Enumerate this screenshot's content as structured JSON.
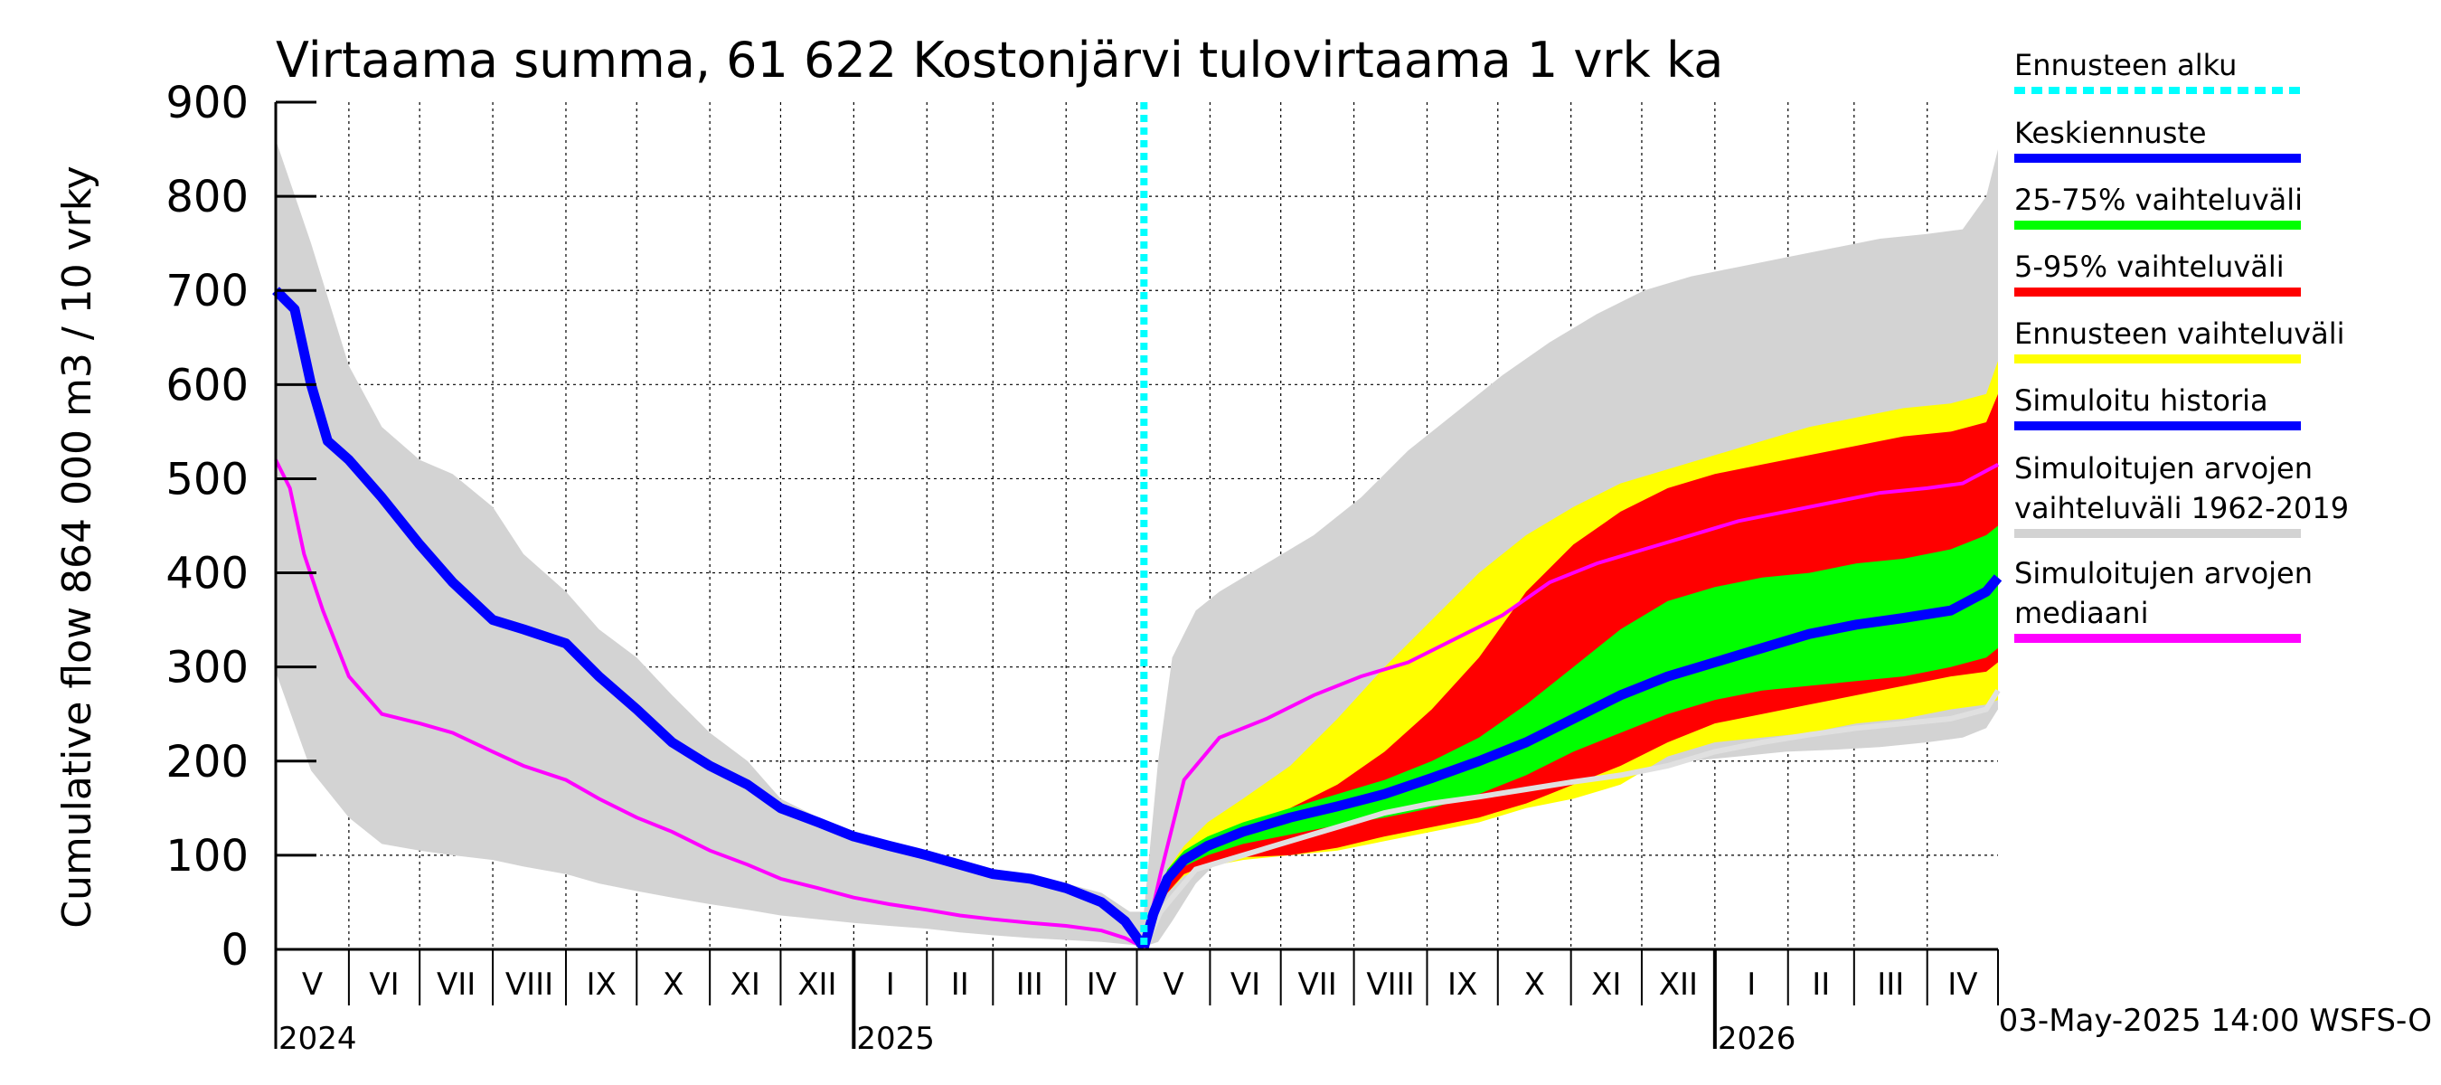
{
  "chart_data": {
    "type": "area",
    "title": "Virtaama summa, 61 622 Kostonjärvi tulovirtaama 1 vrk ka",
    "ylabel": "Cumulative flow    864 000 m3 / 10 vrky",
    "ylim": [
      0,
      900
    ],
    "yticks": [
      "0",
      "100",
      "200",
      "300",
      "400",
      "500",
      "600",
      "700",
      "800",
      "900"
    ],
    "x_range_days": [
      0,
      730
    ],
    "forecast_start_day": 368,
    "months": [
      {
        "label": "V",
        "start": 0,
        "end": 31
      },
      {
        "label": "VI",
        "start": 31,
        "end": 61
      },
      {
        "label": "VII",
        "start": 61,
        "end": 92
      },
      {
        "label": "VIII",
        "start": 92,
        "end": 123
      },
      {
        "label": "IX",
        "start": 123,
        "end": 153
      },
      {
        "label": "X",
        "start": 153,
        "end": 184
      },
      {
        "label": "XI",
        "start": 184,
        "end": 214
      },
      {
        "label": "XII",
        "start": 214,
        "end": 245
      },
      {
        "label": "I",
        "start": 245,
        "end": 276
      },
      {
        "label": "II",
        "start": 276,
        "end": 304
      },
      {
        "label": "III",
        "start": 304,
        "end": 335
      },
      {
        "label": "IV",
        "start": 335,
        "end": 365
      },
      {
        "label": "V",
        "start": 365,
        "end": 396
      },
      {
        "label": "VI",
        "start": 396,
        "end": 426
      },
      {
        "label": "VII",
        "start": 426,
        "end": 457
      },
      {
        "label": "VIII",
        "start": 457,
        "end": 488
      },
      {
        "label": "IX",
        "start": 488,
        "end": 518
      },
      {
        "label": "X",
        "start": 518,
        "end": 549
      },
      {
        "label": "XI",
        "start": 549,
        "end": 579
      },
      {
        "label": "XII",
        "start": 579,
        "end": 610
      },
      {
        "label": "I",
        "start": 610,
        "end": 641
      },
      {
        "label": "II",
        "start": 641,
        "end": 669
      },
      {
        "label": "III",
        "start": 669,
        "end": 700
      },
      {
        "label": "IV",
        "start": 700,
        "end": 730
      }
    ],
    "years": [
      {
        "label": "2024",
        "day": 0
      },
      {
        "label": "2025",
        "day": 245
      },
      {
        "label": "2026",
        "day": 610
      }
    ],
    "year_boundaries": [
      245,
      610
    ],
    "series": {
      "hist_range_1962_2019": {
        "x": [
          0,
          15,
          31,
          45,
          61,
          75,
          92,
          105,
          123,
          137,
          153,
          168,
          184,
          200,
          214,
          230,
          245,
          260,
          276,
          290,
          304,
          320,
          335,
          350,
          362,
          368,
          374,
          380,
          390,
          400,
          420,
          440,
          460,
          480,
          500,
          520,
          540,
          560,
          580,
          600,
          620,
          640,
          660,
          680,
          700,
          715,
          725,
          730
        ],
        "upper": [
          860,
          750,
          620,
          555,
          520,
          505,
          470,
          420,
          380,
          340,
          310,
          270,
          230,
          200,
          160,
          140,
          125,
          110,
          100,
          90,
          80,
          75,
          70,
          60,
          40,
          40,
          200,
          310,
          360,
          380,
          410,
          440,
          480,
          530,
          570,
          610,
          645,
          675,
          700,
          715,
          725,
          735,
          745,
          755,
          760,
          765,
          800,
          850
        ],
        "lower": [
          295,
          190,
          140,
          112,
          105,
          100,
          95,
          88,
          80,
          70,
          62,
          55,
          48,
          42,
          36,
          32,
          28,
          25,
          22,
          18,
          15,
          12,
          10,
          8,
          5,
          3,
          8,
          30,
          70,
          95,
          105,
          112,
          118,
          125,
          138,
          150,
          162,
          175,
          188,
          200,
          205,
          210,
          212,
          215,
          220,
          225,
          235,
          255
        ]
      },
      "ennuste_5_95_outer": {
        "x": [
          368,
          372,
          378,
          385,
          395,
          410,
          430,
          450,
          470,
          490,
          510,
          530,
          550,
          570,
          590,
          610,
          630,
          650,
          670,
          690,
          710,
          725,
          730
        ],
        "upper": [
          2,
          40,
          85,
          110,
          135,
          160,
          195,
          245,
          300,
          350,
          400,
          440,
          470,
          495,
          510,
          525,
          540,
          555,
          565,
          575,
          580,
          590,
          625
        ],
        "lower": [
          2,
          30,
          60,
          78,
          88,
          95,
          100,
          105,
          115,
          125,
          135,
          150,
          160,
          175,
          205,
          220,
          225,
          230,
          240,
          245,
          255,
          260,
          265
        ]
      },
      "ennuste_5_95": {
        "x": [
          368,
          372,
          378,
          385,
          395,
          410,
          430,
          450,
          470,
          490,
          510,
          530,
          550,
          570,
          590,
          610,
          630,
          650,
          670,
          690,
          710,
          725,
          730
        ],
        "upper": [
          2,
          40,
          80,
          100,
          115,
          130,
          150,
          175,
          210,
          255,
          310,
          380,
          430,
          465,
          490,
          505,
          515,
          525,
          535,
          545,
          550,
          560,
          590
        ],
        "lower": [
          2,
          30,
          60,
          80,
          90,
          98,
          100,
          108,
          120,
          130,
          140,
          155,
          175,
          195,
          220,
          240,
          250,
          260,
          270,
          280,
          290,
          295,
          305
        ]
      },
      "ennuste_25_75": {
        "x": [
          368,
          372,
          378,
          385,
          395,
          410,
          430,
          450,
          470,
          490,
          510,
          530,
          550,
          570,
          590,
          610,
          630,
          650,
          670,
          690,
          710,
          725,
          730
        ],
        "upper": [
          2,
          45,
          85,
          105,
          120,
          135,
          150,
          165,
          180,
          200,
          225,
          260,
          300,
          340,
          370,
          385,
          395,
          400,
          410,
          415,
          425,
          440,
          450
        ],
        "lower": [
          2,
          35,
          70,
          88,
          100,
          112,
          122,
          132,
          140,
          150,
          165,
          185,
          210,
          230,
          250,
          265,
          275,
          280,
          285,
          290,
          300,
          310,
          320
        ]
      },
      "keskiennuste": {
        "x": [
          368,
          372,
          378,
          385,
          395,
          410,
          430,
          450,
          470,
          490,
          510,
          530,
          550,
          570,
          590,
          610,
          630,
          650,
          670,
          690,
          710,
          725,
          730
        ],
        "y": [
          2,
          38,
          75,
          95,
          110,
          125,
          140,
          152,
          165,
          182,
          200,
          220,
          245,
          270,
          290,
          305,
          320,
          335,
          345,
          352,
          360,
          380,
          395
        ]
      },
      "simuloitu_historia": {
        "x": [
          0,
          8,
          15,
          22,
          31,
          45,
          61,
          75,
          92,
          105,
          123,
          137,
          153,
          168,
          184,
          200,
          214,
          230,
          245,
          260,
          276,
          290,
          304,
          320,
          335,
          350,
          360,
          368
        ],
        "y": [
          700,
          680,
          600,
          540,
          520,
          480,
          430,
          390,
          350,
          340,
          325,
          290,
          255,
          220,
          195,
          175,
          150,
          135,
          120,
          110,
          100,
          90,
          80,
          75,
          65,
          50,
          30,
          2
        ]
      },
      "median": {
        "x": [
          0,
          6,
          12,
          20,
          31,
          45,
          61,
          75,
          92,
          105,
          123,
          137,
          153,
          168,
          184,
          200,
          214,
          230,
          245,
          260,
          276,
          290,
          304,
          320,
          335,
          350,
          360,
          368,
          375,
          385,
          400,
          420,
          440,
          460,
          480,
          500,
          520,
          540,
          560,
          580,
          600,
          620,
          640,
          660,
          680,
          700,
          715,
          730
        ],
        "y": [
          520,
          490,
          420,
          360,
          290,
          250,
          240,
          230,
          210,
          195,
          180,
          160,
          140,
          125,
          105,
          90,
          75,
          65,
          55,
          48,
          42,
          36,
          32,
          28,
          25,
          20,
          12,
          2,
          80,
          180,
          225,
          245,
          270,
          290,
          305,
          330,
          355,
          390,
          410,
          425,
          440,
          455,
          465,
          475,
          485,
          490,
          495,
          515
        ]
      },
      "median_forecast": {
        "x": [
          368,
          375,
          390,
          410,
          430,
          450,
          470,
          490,
          510,
          530,
          550,
          570,
          590,
          610,
          630,
          650,
          670,
          690,
          710,
          725,
          730
        ],
        "y": [
          2,
          40,
          85,
          100,
          115,
          130,
          145,
          155,
          162,
          170,
          178,
          185,
          195,
          210,
          220,
          228,
          235,
          240,
          245,
          255,
          275
        ]
      }
    },
    "legend": [
      {
        "label": "Ennusteen alku",
        "color": "#00ffff",
        "style": "dotted"
      },
      {
        "label": "Keskiennuste",
        "color": "#0000ff",
        "style": "line"
      },
      {
        "label": "25-75% vaihteluväli",
        "color": "#00ff00",
        "style": "line"
      },
      {
        "label": "5-95% vaihteluväli",
        "color": "#ff0000",
        "style": "line"
      },
      {
        "label": "Ennusteen vaihteluväli",
        "color": "#ffff00",
        "style": "line"
      },
      {
        "label": "Simuloitu historia",
        "color": "#0000ff",
        "style": "line"
      },
      {
        "label": "Simuloitujen arvojen vaihteluväli 1962-2019",
        "color": "#d3d3d3",
        "style": "line"
      },
      {
        "label": "Simuloitujen arvojen mediaani",
        "color": "#ff00ff",
        "style": "line"
      }
    ],
    "footer": "03-May-2025 14:00 WSFS-O",
    "colors": {
      "grey": "#d3d3d3",
      "yellow": "#ffff00",
      "red": "#ff0000",
      "green": "#00ff00",
      "blue": "#0000ff",
      "magenta": "#ff00ff",
      "cyan": "#00ffff",
      "median_forecast": "#e0e0e0"
    }
  }
}
